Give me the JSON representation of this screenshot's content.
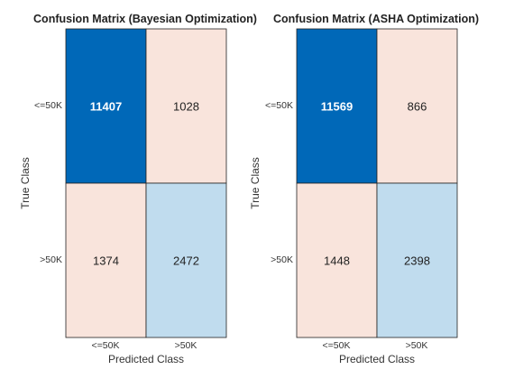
{
  "chart_data": [
    {
      "type": "heatmap",
      "title": "Confusion Matrix (Bayesian Optimization)",
      "xlabel": "Predicted Class",
      "ylabel": "True Class",
      "rows": [
        "<=50K",
        ">50K"
      ],
      "cols": [
        "<=50K",
        ">50K"
      ],
      "values": [
        [
          11407,
          1028
        ],
        [
          1374,
          2472
        ]
      ],
      "colors": [
        [
          "#0068b8",
          "#f9e4dc"
        ],
        [
          "#f9e4dc",
          "#c0dcee"
        ]
      ],
      "bold_cells": [
        [
          true,
          false
        ],
        [
          false,
          false
        ]
      ]
    },
    {
      "type": "heatmap",
      "title": "Confusion Matrix (ASHA Optimization)",
      "xlabel": "Predicted Class",
      "ylabel": "True Class",
      "rows": [
        "<=50K",
        ">50K"
      ],
      "cols": [
        "<=50K",
        ">50K"
      ],
      "values": [
        [
          11569,
          866
        ],
        [
          1448,
          2398
        ]
      ],
      "colors": [
        [
          "#0068b8",
          "#f9e4dc"
        ],
        [
          "#f9e4dc",
          "#c0dcee"
        ]
      ],
      "bold_cells": [
        [
          true,
          false
        ],
        [
          false,
          false
        ]
      ]
    }
  ]
}
